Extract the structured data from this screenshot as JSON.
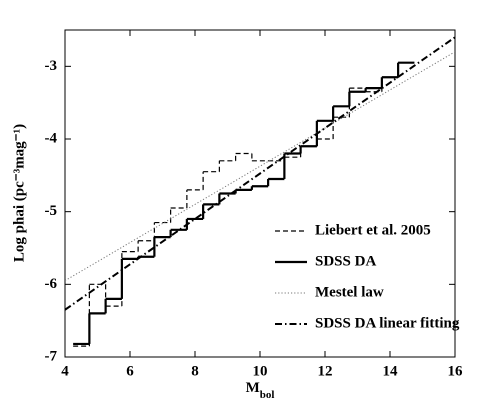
{
  "chart_data": {
    "type": "line",
    "x_label": {
      "main": "M",
      "sub": "bol"
    },
    "y_label": "Log phai (pc⁻³mag⁻¹)",
    "xlim": [
      4,
      16
    ],
    "xticks": [
      4,
      6,
      8,
      10,
      12,
      14,
      16
    ],
    "ylim": [
      -7,
      -2.5
    ],
    "yticks": [
      -7,
      -6,
      -5,
      -4,
      -3
    ],
    "legend_position": "lower right",
    "series": [
      {
        "name": "Liebert et al. 2005",
        "color": "#000000",
        "dash": "dashed",
        "style": "step",
        "bins": [
          4.25,
          4.75,
          5.25,
          5.75,
          6.25,
          6.75,
          7.25,
          7.75,
          8.25,
          8.75,
          9.25,
          9.75,
          10.25,
          10.75,
          11.25,
          11.75,
          12.25,
          12.75,
          13.25,
          13.75,
          14.25,
          14.75
        ],
        "values": [
          -6.85,
          -6.0,
          -6.3,
          -5.55,
          -5.4,
          -5.15,
          -4.95,
          -4.7,
          -4.45,
          -4.3,
          -4.2,
          -4.3,
          -4.3,
          -4.25,
          -4.1,
          -4.0,
          -3.7,
          -3.3,
          -3.35,
          -3.15,
          -2.95
        ]
      },
      {
        "name": "SDSS DA",
        "color": "#000000",
        "dash": "solid",
        "style": "step",
        "bins": [
          4.25,
          4.75,
          5.25,
          5.75,
          6.25,
          6.75,
          7.25,
          7.75,
          8.25,
          8.75,
          9.25,
          9.75,
          10.25,
          10.75,
          11.25,
          11.75,
          12.25,
          12.75,
          13.25,
          13.75,
          14.25,
          14.75
        ],
        "values": [
          -6.82,
          -6.4,
          -6.2,
          -5.65,
          -5.62,
          -5.35,
          -5.25,
          -5.1,
          -4.9,
          -4.75,
          -4.7,
          -4.65,
          -4.55,
          -4.2,
          -4.1,
          -3.75,
          -3.55,
          -3.35,
          -3.3,
          -3.15,
          -2.95
        ]
      },
      {
        "name": "Mestel law",
        "color": "#777777",
        "dash": "dotted",
        "style": "line",
        "x": [
          4,
          16
        ],
        "values": [
          -5.95,
          -2.8
        ]
      },
      {
        "name": "SDSS DA linear fitting",
        "color": "#000000",
        "dash": "dashdot",
        "style": "line",
        "x": [
          4,
          16
        ],
        "values": [
          -6.35,
          -2.6
        ]
      }
    ]
  }
}
